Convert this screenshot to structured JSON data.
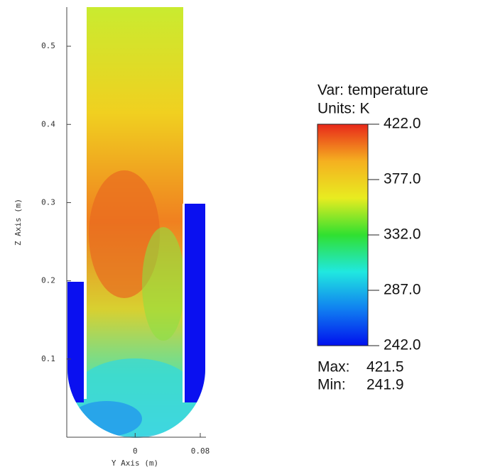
{
  "chart_data": {
    "type": "pseudocolor",
    "xlabel": "Y Axis (m)",
    "ylabel": "Z Axis (m)",
    "xlim": [
      -0.084,
      0.087
    ],
    "xticks": [
      {
        "value": 0,
        "label": "0"
      },
      0.08
    ],
    "ylim": [
      0,
      0.55
    ],
    "yticks": [
      0.1,
      0.2,
      0.3,
      0.4,
      0.5
    ],
    "legend": {
      "var": "Var: temperature",
      "units": "Units: K",
      "clim": [
        242,
        422
      ],
      "ticks": [
        {
          "value": 422,
          "label": "422.0"
        },
        {
          "value": 377,
          "label": "377.0"
        },
        {
          "value": 332,
          "label": "332.0"
        },
        {
          "value": 287,
          "label": "287.0"
        },
        {
          "value": 242,
          "label": "242.0"
        }
      ],
      "colormap": [
        "#e8281a",
        "#f5b020",
        "#e8ec20",
        "#30e030",
        "#20e8e0",
        "#1080f0",
        "#0010ee"
      ],
      "max_label": "Max:",
      "max": 421.5,
      "min_label": "Min:",
      "min": 241.9
    }
  }
}
